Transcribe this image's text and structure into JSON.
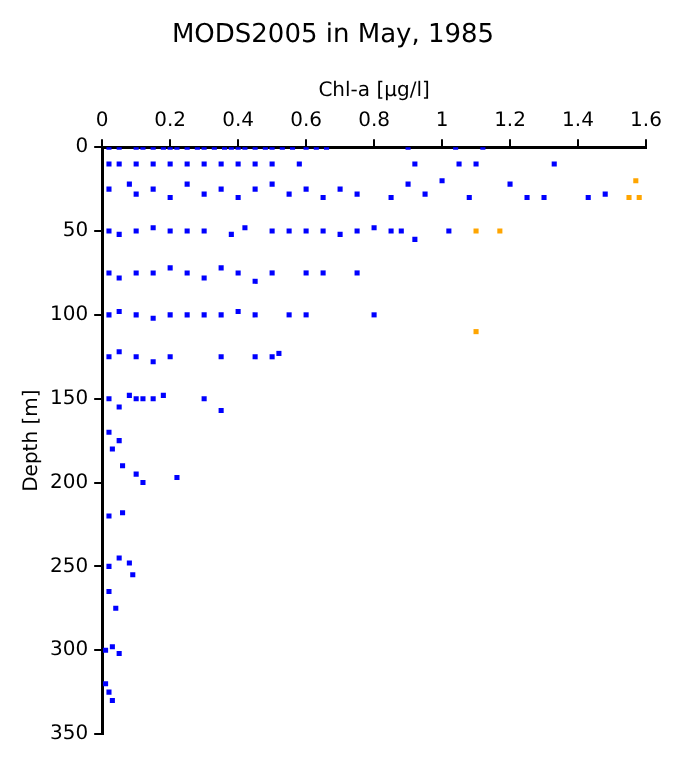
{
  "chart_data": {
    "type": "scatter",
    "title": "MODS2005 in May, 1985",
    "xlabel": "Chl-a [µg/l]",
    "ylabel": "Depth [m]",
    "xlim": [
      0,
      1.6
    ],
    "xticks": [
      0,
      0.2,
      0.4,
      0.6,
      0.8,
      1,
      1.2,
      1.4,
      1.6
    ],
    "ylim": [
      350,
      0
    ],
    "yticks": [
      0,
      50,
      100,
      150,
      200,
      250,
      300,
      350
    ],
    "grid": false,
    "legend": false,
    "marker": "square",
    "series": [
      {
        "color": "#0000ff",
        "x": [
          0.02,
          0.05,
          0.1,
          0.12,
          0.15,
          0.18,
          0.2,
          0.22,
          0.25,
          0.28,
          0.3,
          0.33,
          0.36,
          0.38,
          0.4,
          0.42,
          0.45,
          0.48,
          0.5,
          0.53,
          0.56,
          0.6,
          0.63,
          0.66,
          0.9,
          1.04,
          1.12,
          0.02,
          0.05,
          0.1,
          0.15,
          0.2,
          0.25,
          0.3,
          0.35,
          0.4,
          0.45,
          0.5,
          0.58,
          0.92,
          1.05,
          1.1,
          1.33,
          0.02,
          0.08,
          0.1,
          0.15,
          0.2,
          0.25,
          0.3,
          0.35,
          0.4,
          0.45,
          0.5,
          0.55,
          0.6,
          0.65,
          0.7,
          0.75,
          0.85,
          0.9,
          0.95,
          1.0,
          1.08,
          1.2,
          1.25,
          1.3,
          1.43,
          1.48,
          0.02,
          0.05,
          0.1,
          0.15,
          0.2,
          0.25,
          0.3,
          0.38,
          0.42,
          0.5,
          0.55,
          0.6,
          0.65,
          0.7,
          0.75,
          0.8,
          0.85,
          0.88,
          0.92,
          1.02,
          0.02,
          0.05,
          0.1,
          0.15,
          0.2,
          0.25,
          0.3,
          0.35,
          0.4,
          0.45,
          0.5,
          0.6,
          0.65,
          0.75,
          0.02,
          0.05,
          0.1,
          0.15,
          0.2,
          0.25,
          0.3,
          0.35,
          0.4,
          0.45,
          0.55,
          0.6,
          0.8,
          0.02,
          0.05,
          0.1,
          0.15,
          0.2,
          0.35,
          0.45,
          0.5,
          0.52,
          0.02,
          0.05,
          0.08,
          0.1,
          0.12,
          0.15,
          0.18,
          0.3,
          0.35,
          0.02,
          0.05,
          0.03,
          0.06,
          0.1,
          0.12,
          0.22,
          0.02,
          0.06,
          0.02,
          0.05,
          0.08,
          0.09,
          0.02,
          0.04,
          0.01,
          0.03,
          0.05,
          0.01,
          0.02,
          0.03
        ],
        "values": [
          0,
          0,
          0,
          0,
          0,
          0,
          0,
          0,
          0,
          0,
          0,
          0,
          0,
          0,
          0,
          0,
          0,
          0,
          0,
          0,
          0,
          0,
          0,
          0,
          0,
          0,
          0,
          10,
          10,
          10,
          10,
          10,
          10,
          10,
          10,
          10,
          10,
          10,
          10,
          10,
          10,
          10,
          10,
          25,
          22,
          28,
          25,
          30,
          22,
          28,
          25,
          30,
          25,
          22,
          28,
          25,
          30,
          25,
          28,
          30,
          22,
          28,
          20,
          30,
          22,
          30,
          30,
          30,
          28,
          50,
          52,
          50,
          48,
          50,
          50,
          50,
          52,
          48,
          50,
          50,
          50,
          50,
          52,
          50,
          48,
          50,
          50,
          55,
          50,
          75,
          78,
          75,
          75,
          72,
          75,
          78,
          72,
          75,
          80,
          75,
          75,
          75,
          75,
          100,
          98,
          100,
          102,
          100,
          100,
          100,
          100,
          98,
          100,
          100,
          100,
          100,
          125,
          122,
          125,
          128,
          125,
          125,
          125,
          125,
          123,
          150,
          155,
          148,
          150,
          150,
          150,
          148,
          150,
          157,
          170,
          175,
          180,
          190,
          195,
          200,
          197,
          220,
          218,
          250,
          245,
          248,
          255,
          265,
          275,
          300,
          298,
          302,
          320,
          325,
          330
        ]
      },
      {
        "color": "#ffa500",
        "x": [
          1.57,
          1.55,
          1.58,
          1.1,
          1.17,
          1.1
        ],
        "values": [
          20,
          30,
          30,
          50,
          50,
          110
        ]
      }
    ]
  }
}
